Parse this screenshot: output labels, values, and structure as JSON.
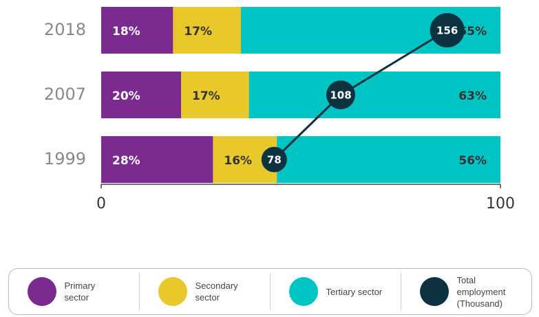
{
  "chart_data": {
    "type": "stacked-bar",
    "categories": [
      "2018",
      "2007",
      "1999"
    ],
    "series": [
      {
        "name": "Primary sector",
        "color": "#7b2a90",
        "values": [
          18,
          20,
          28
        ],
        "value_labels": [
          "18%",
          "20%",
          "28%"
        ]
      },
      {
        "name": "Secondary sector",
        "color": "#e8c82a",
        "values": [
          17,
          17,
          16
        ],
        "value_labels": [
          "17%",
          "17%",
          "16%"
        ]
      },
      {
        "name": "Tertiary sector",
        "color": "#00c4c4",
        "values": [
          65,
          63,
          56
        ],
        "value_labels": [
          "65%",
          "63%",
          "56%"
        ]
      },
      {
        "name": "Total employment (Thousand)",
        "color": "#0d3340",
        "values": [
          156,
          108,
          78
        ],
        "axis": "x2"
      }
    ],
    "xlim": [
      0,
      100
    ],
    "xticks": [
      0,
      100
    ],
    "x2lim": [
      0,
      180
    ]
  }
}
